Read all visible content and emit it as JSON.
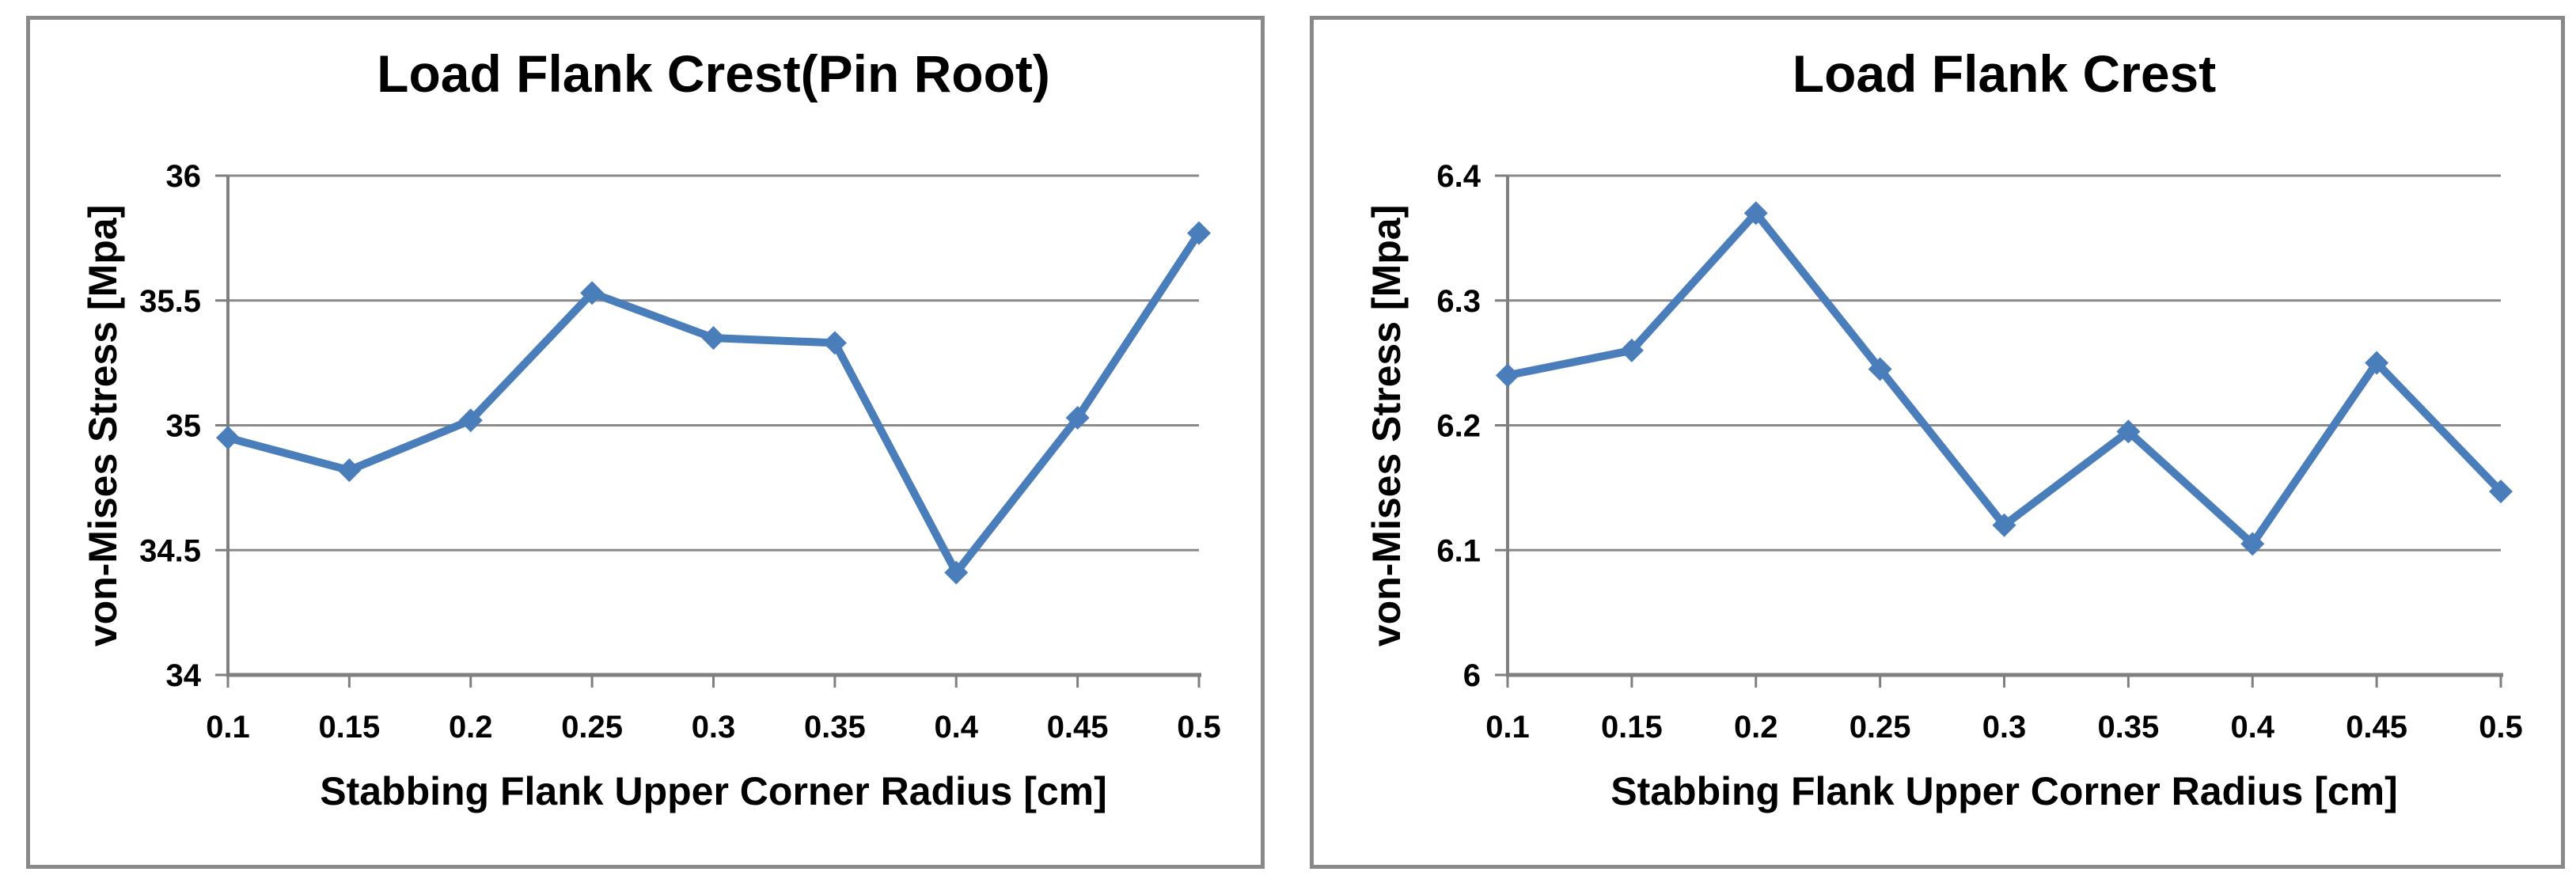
{
  "colors": {
    "series": "#4A7EBB",
    "gridline": "#8A8A8A",
    "axis": "#7F7F7F",
    "panel_border": "#898989",
    "text": "#000000",
    "background": "#FFFFFF"
  },
  "chart_data": [
    {
      "type": "line",
      "title": "Load Flank Crest(Pin Root)",
      "xlabel": "Stabbing Flank Upper Corner Radius [cm]",
      "ylabel": "von-Mises Stress [Mpa]",
      "x": [
        0.1,
        0.15,
        0.2,
        0.25,
        0.3,
        0.35,
        0.4,
        0.45,
        0.5
      ],
      "x_tick_labels": [
        "0.1",
        "0.15",
        "0.2",
        "0.25",
        "0.3",
        "0.35",
        "0.4",
        "0.45",
        "0.5"
      ],
      "values": [
        34.95,
        34.82,
        35.02,
        35.53,
        35.35,
        35.33,
        34.41,
        35.03,
        35.77
      ],
      "ylim": [
        34,
        36
      ],
      "y_ticks": [
        34,
        34.5,
        35,
        35.5,
        36
      ],
      "y_tick_labels": [
        "34",
        "34.5",
        "35",
        "35.5",
        "36"
      ],
      "grid": true,
      "legend": "none",
      "series_color": "#4A7EBB",
      "marker": "diamond"
    },
    {
      "type": "line",
      "title": "Load Flank Crest",
      "xlabel": "Stabbing Flank Upper Corner Radius [cm]",
      "ylabel": "von-Mises Stress [Mpa]",
      "x": [
        0.1,
        0.15,
        0.2,
        0.25,
        0.3,
        0.35,
        0.4,
        0.45,
        0.5
      ],
      "x_tick_labels": [
        "0.1",
        "0.15",
        "0.2",
        "0.25",
        "0.3",
        "0.35",
        "0.4",
        "0.45",
        "0.5"
      ],
      "values": [
        6.24,
        6.26,
        6.37,
        6.245,
        6.12,
        6.195,
        6.105,
        6.25,
        6.147
      ],
      "ylim": [
        6.0,
        6.4
      ],
      "y_ticks": [
        6.0,
        6.1,
        6.2,
        6.3,
        6.4
      ],
      "y_tick_labels": [
        "6",
        "6.1",
        "6.2",
        "6.3",
        "6.4"
      ],
      "grid": true,
      "legend": "none",
      "series_color": "#4A7EBB",
      "marker": "diamond"
    }
  ]
}
